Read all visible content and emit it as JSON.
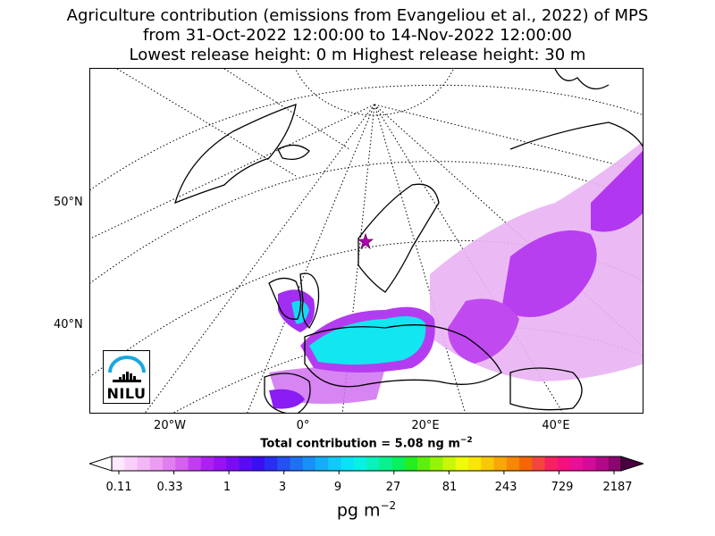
{
  "title": {
    "line1": "Agriculture contribution (emissions from Evangeliou et al., 2022) of MPS",
    "line2": "from 31-Oct-2022 12:00:00 to 14-Nov-2022 12:00:00",
    "line3": "Lowest release height: 0 m      Highest release height: 30 m"
  },
  "map": {
    "lat_labels": [
      "50°N",
      "40°N"
    ],
    "lon_labels": [
      "20°W",
      "0°",
      "20°E",
      "40°E"
    ],
    "logo_text": "NILU",
    "logo_colors": {
      "arc": "#1aa8e0",
      "bars": "#000000"
    }
  },
  "total": {
    "prefix": "Total contribution = 5.08 ng m",
    "exponent": "−2"
  },
  "colorbar": {
    "tick_labels": [
      "0.11",
      "0.33",
      "1",
      "3",
      "9",
      "27",
      "81",
      "243",
      "729",
      "2187"
    ],
    "unit_base": "pg m",
    "unit_exponent": "−2",
    "under_color": "#ffffff",
    "over_color": "#4a0040",
    "colors": [
      "#fde8fd",
      "#f9d0fb",
      "#f3b6f7",
      "#ec9cf3",
      "#e27ff0",
      "#d460ee",
      "#c13ef0",
      "#ad20f2",
      "#9712f4",
      "#7a0cf5",
      "#5a0af5",
      "#3a0ff4",
      "#2a2ef4",
      "#2450f5",
      "#2070f6",
      "#1a90f7",
      "#14aef8",
      "#0ecbf9",
      "#08e3f8",
      "#06f2e4",
      "#06f3bb",
      "#06f28f",
      "#07f05e",
      "#22ee22",
      "#5ef00a",
      "#96f505",
      "#c8f805",
      "#eefc05",
      "#f8e605",
      "#f9c805",
      "#f8a805",
      "#f78805",
      "#f66605",
      "#f54440",
      "#f72060",
      "#f5107e",
      "#ea0e98",
      "#d60a9a",
      "#b40888",
      "#8a0670"
    ]
  }
}
